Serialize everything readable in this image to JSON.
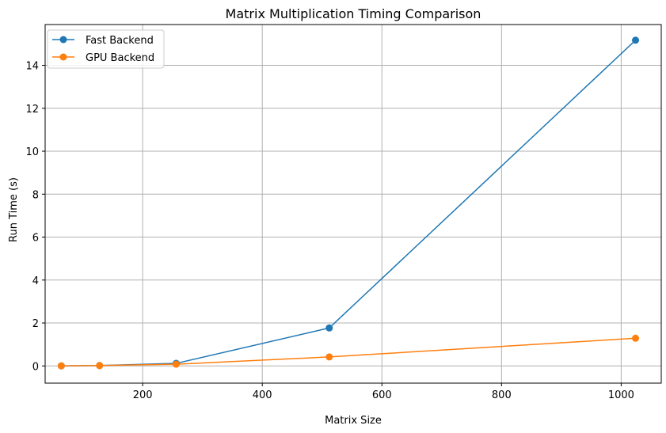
{
  "chart_data": {
    "type": "line",
    "title": "Matrix Multiplication Timing Comparison",
    "xlabel": "Matrix Size",
    "ylabel": "Run Time (s)",
    "xlim": [
      37,
      1067
    ],
    "ylim": [
      -0.8,
      15.9
    ],
    "xticks": [
      200,
      400,
      600,
      800,
      1000
    ],
    "yticks": [
      0,
      2,
      4,
      6,
      8,
      10,
      12,
      14
    ],
    "grid": true,
    "legend_position": "top-left",
    "x": [
      64,
      128,
      256,
      512,
      1024
    ],
    "series": [
      {
        "name": "Fast Backend",
        "color": "#1f77b4",
        "marker": "circle",
        "values": [
          0.003,
          0.02,
          0.12,
          1.77,
          15.17
        ]
      },
      {
        "name": "GPU Backend",
        "color": "#ff7f0e",
        "marker": "circle",
        "values": [
          0.005,
          0.02,
          0.08,
          0.42,
          1.29
        ]
      }
    ]
  }
}
